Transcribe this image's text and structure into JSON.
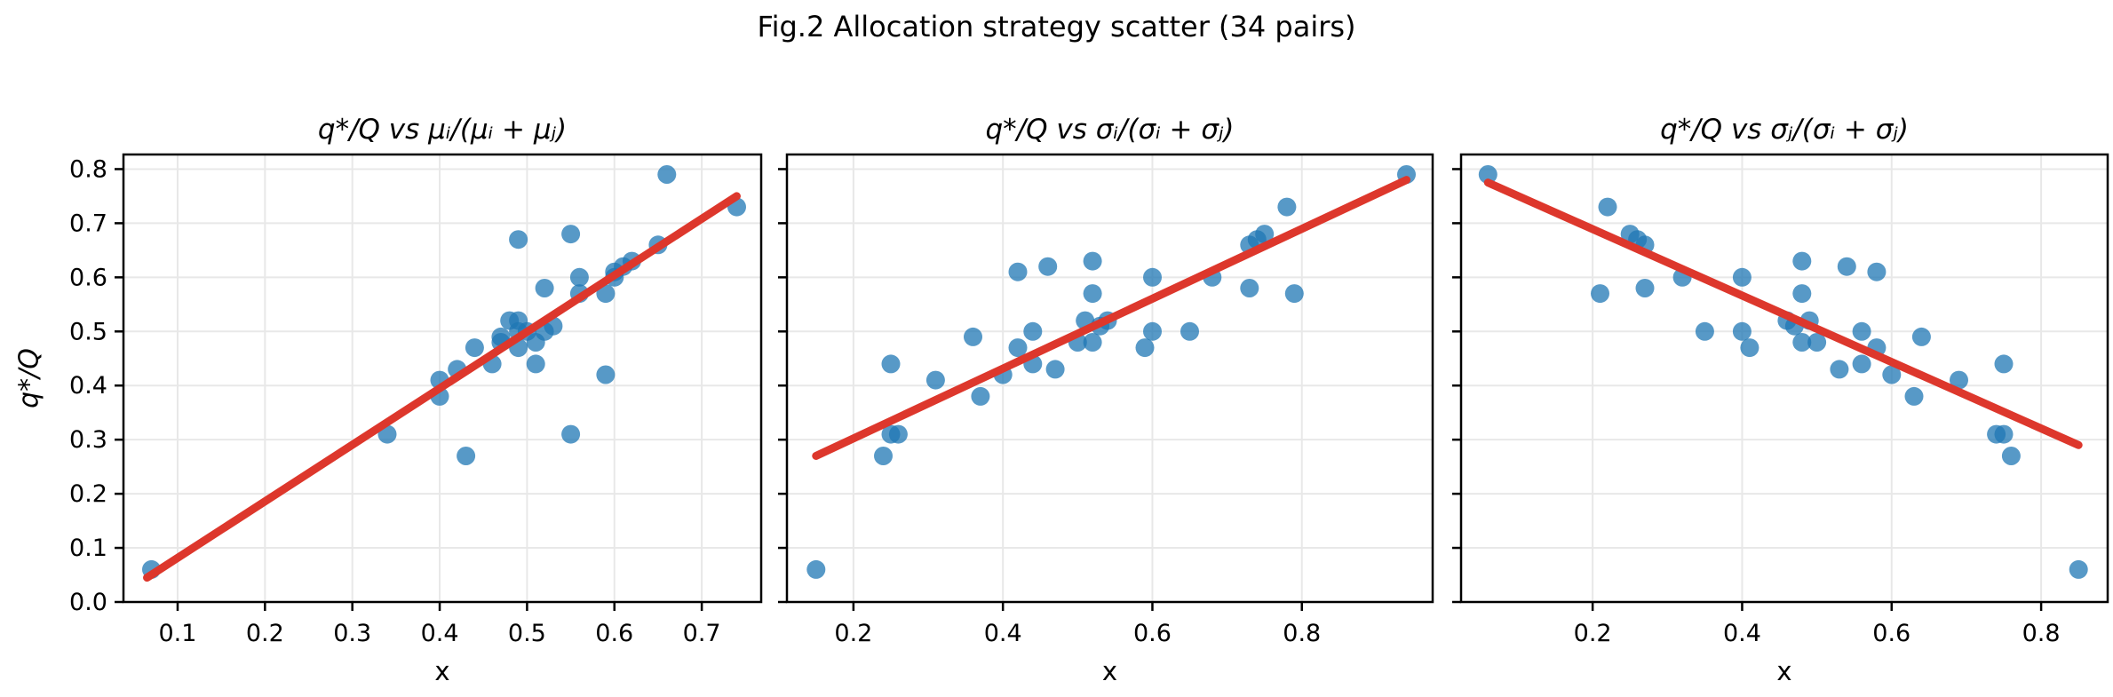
{
  "figure": {
    "title": "Fig.2 Allocation strategy scatter (34 pairs)",
    "ylabel": "q*/Q",
    "xlabel": "x",
    "n_pairs": 34,
    "colors": {
      "point": "#1f77b4",
      "point_opacity": 0.75,
      "trend_line": "#dd372c",
      "grid": "#e8e8e8",
      "axis": "#000000",
      "background": "#ffffff"
    }
  },
  "chart_data": [
    {
      "type": "scatter",
      "title": "q*/Q vs μᵢ/(μᵢ + μⱼ)",
      "x_variable": "mu_i/(mu_i+mu_j)",
      "xlabel": "x",
      "ylabel": "q*/Q",
      "xlim": [
        0.038,
        0.768
      ],
      "ylim": [
        0.0,
        0.827
      ],
      "xticks": [
        0.1,
        0.2,
        0.3,
        0.4,
        0.5,
        0.6,
        0.7
      ],
      "yticks": [
        0.0,
        0.1,
        0.2,
        0.3,
        0.4,
        0.5,
        0.6,
        0.7,
        0.8
      ],
      "show_ytick_labels": true,
      "grid": true,
      "points": [
        [
          0.07,
          0.06
        ],
        [
          0.43,
          0.27
        ],
        [
          0.34,
          0.31
        ],
        [
          0.55,
          0.31
        ],
        [
          0.4,
          0.38
        ],
        [
          0.4,
          0.41
        ],
        [
          0.59,
          0.42
        ],
        [
          0.42,
          0.43
        ],
        [
          0.46,
          0.44
        ],
        [
          0.51,
          0.44
        ],
        [
          0.44,
          0.47
        ],
        [
          0.49,
          0.47
        ],
        [
          0.47,
          0.48
        ],
        [
          0.51,
          0.48
        ],
        [
          0.47,
          0.49
        ],
        [
          0.49,
          0.5
        ],
        [
          0.5,
          0.5
        ],
        [
          0.52,
          0.5
        ],
        [
          0.53,
          0.51
        ],
        [
          0.48,
          0.52
        ],
        [
          0.49,
          0.52
        ],
        [
          0.56,
          0.57
        ],
        [
          0.59,
          0.57
        ],
        [
          0.52,
          0.58
        ],
        [
          0.56,
          0.6
        ],
        [
          0.6,
          0.6
        ],
        [
          0.6,
          0.61
        ],
        [
          0.61,
          0.62
        ],
        [
          0.62,
          0.63
        ],
        [
          0.65,
          0.66
        ],
        [
          0.49,
          0.67
        ],
        [
          0.55,
          0.68
        ],
        [
          0.74,
          0.73
        ],
        [
          0.66,
          0.79
        ]
      ],
      "trend_line": {
        "x": [
          0.065,
          0.74
        ],
        "y": [
          0.045,
          0.75
        ]
      }
    },
    {
      "type": "scatter",
      "title": "q*/Q vs σᵢ/(σᵢ + σⱼ)",
      "x_variable": "sigma_i/(sigma_i+sigma_j)",
      "xlabel": "x",
      "ylabel": "q*/Q",
      "xlim": [
        0.111,
        0.975
      ],
      "ylim": [
        0.0,
        0.827
      ],
      "xticks": [
        0.2,
        0.4,
        0.6,
        0.8
      ],
      "yticks": [
        0.0,
        0.1,
        0.2,
        0.3,
        0.4,
        0.5,
        0.6,
        0.7,
        0.8
      ],
      "show_ytick_labels": false,
      "grid": true,
      "points": [
        [
          0.15,
          0.06
        ],
        [
          0.24,
          0.27
        ],
        [
          0.25,
          0.31
        ],
        [
          0.26,
          0.31
        ],
        [
          0.37,
          0.38
        ],
        [
          0.31,
          0.41
        ],
        [
          0.4,
          0.42
        ],
        [
          0.47,
          0.43
        ],
        [
          0.44,
          0.44
        ],
        [
          0.25,
          0.44
        ],
        [
          0.42,
          0.47
        ],
        [
          0.59,
          0.47
        ],
        [
          0.5,
          0.48
        ],
        [
          0.52,
          0.48
        ],
        [
          0.36,
          0.49
        ],
        [
          0.44,
          0.5
        ],
        [
          0.6,
          0.5
        ],
        [
          0.65,
          0.5
        ],
        [
          0.53,
          0.51
        ],
        [
          0.51,
          0.52
        ],
        [
          0.54,
          0.52
        ],
        [
          0.52,
          0.57
        ],
        [
          0.79,
          0.57
        ],
        [
          0.73,
          0.58
        ],
        [
          0.6,
          0.6
        ],
        [
          0.68,
          0.6
        ],
        [
          0.42,
          0.61
        ],
        [
          0.46,
          0.62
        ],
        [
          0.52,
          0.63
        ],
        [
          0.73,
          0.66
        ],
        [
          0.74,
          0.67
        ],
        [
          0.75,
          0.68
        ],
        [
          0.78,
          0.73
        ],
        [
          0.94,
          0.79
        ]
      ],
      "trend_line": {
        "x": [
          0.15,
          0.94
        ],
        "y": [
          0.27,
          0.78
        ]
      }
    },
    {
      "type": "scatter",
      "title": "q*/Q vs σⱼ/(σᵢ + σⱼ)",
      "x_variable": "sigma_j/(sigma_i+sigma_j)",
      "xlabel": "x",
      "ylabel": "q*/Q",
      "xlim": [
        0.024,
        0.889
      ],
      "ylim": [
        0.0,
        0.827
      ],
      "xticks": [
        0.2,
        0.4,
        0.6,
        0.8
      ],
      "yticks": [
        0.0,
        0.1,
        0.2,
        0.3,
        0.4,
        0.5,
        0.6,
        0.7,
        0.8
      ],
      "show_ytick_labels": false,
      "grid": true,
      "points": [
        [
          0.85,
          0.06
        ],
        [
          0.76,
          0.27
        ],
        [
          0.75,
          0.31
        ],
        [
          0.74,
          0.31
        ],
        [
          0.63,
          0.38
        ],
        [
          0.69,
          0.41
        ],
        [
          0.6,
          0.42
        ],
        [
          0.53,
          0.43
        ],
        [
          0.56,
          0.44
        ],
        [
          0.75,
          0.44
        ],
        [
          0.58,
          0.47
        ],
        [
          0.41,
          0.47
        ],
        [
          0.5,
          0.48
        ],
        [
          0.48,
          0.48
        ],
        [
          0.64,
          0.49
        ],
        [
          0.56,
          0.5
        ],
        [
          0.4,
          0.5
        ],
        [
          0.35,
          0.5
        ],
        [
          0.47,
          0.51
        ],
        [
          0.49,
          0.52
        ],
        [
          0.46,
          0.52
        ],
        [
          0.48,
          0.57
        ],
        [
          0.21,
          0.57
        ],
        [
          0.27,
          0.58
        ],
        [
          0.4,
          0.6
        ],
        [
          0.32,
          0.6
        ],
        [
          0.58,
          0.61
        ],
        [
          0.54,
          0.62
        ],
        [
          0.48,
          0.63
        ],
        [
          0.27,
          0.66
        ],
        [
          0.26,
          0.67
        ],
        [
          0.25,
          0.68
        ],
        [
          0.22,
          0.73
        ],
        [
          0.06,
          0.79
        ]
      ],
      "trend_line": {
        "x": [
          0.06,
          0.85
        ],
        "y": [
          0.775,
          0.29
        ]
      }
    }
  ]
}
